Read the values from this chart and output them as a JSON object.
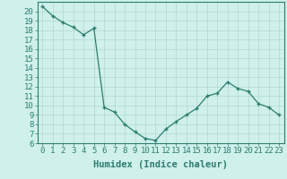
{
  "x": [
    0,
    1,
    2,
    3,
    4,
    5,
    6,
    7,
    8,
    9,
    10,
    11,
    12,
    13,
    14,
    15,
    16,
    17,
    18,
    19,
    20,
    21,
    22,
    23
  ],
  "y": [
    20.5,
    19.5,
    18.8,
    18.3,
    17.5,
    18.2,
    9.8,
    9.3,
    8.0,
    7.2,
    6.5,
    6.3,
    7.5,
    8.3,
    9.0,
    9.7,
    11.0,
    11.3,
    12.5,
    11.8,
    11.5,
    10.2,
    9.8,
    9.0
  ],
  "xlabel": "Humidex (Indice chaleur)",
  "xlim": [
    -0.5,
    23.5
  ],
  "ylim": [
    6,
    21
  ],
  "yticks": [
    6,
    7,
    8,
    9,
    10,
    11,
    12,
    13,
    14,
    15,
    16,
    17,
    18,
    19,
    20
  ],
  "xticks": [
    0,
    1,
    2,
    3,
    4,
    5,
    6,
    7,
    8,
    9,
    10,
    11,
    12,
    13,
    14,
    15,
    16,
    17,
    18,
    19,
    20,
    21,
    22,
    23
  ],
  "line_color": "#2d7d6e",
  "bg_color": "#cff0eb",
  "grid_color": "#b0d8d0",
  "tick_fontsize": 6.5,
  "label_fontsize": 7.5
}
